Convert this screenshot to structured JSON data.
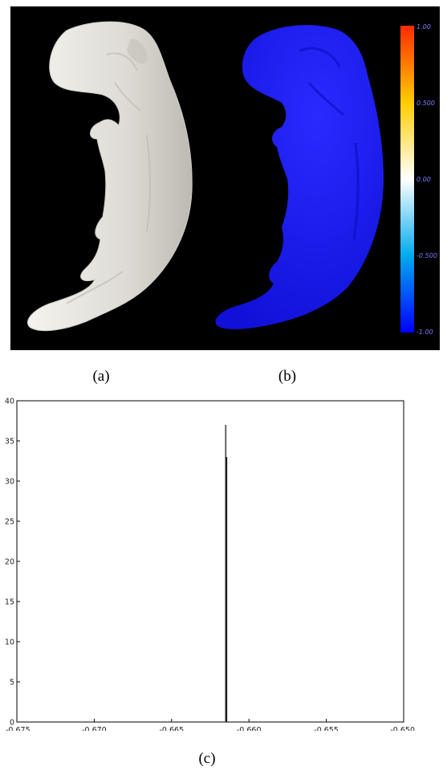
{
  "captions": {
    "a": "(a)",
    "b": "(b)",
    "c": "(c)"
  },
  "colorbar": {
    "ticks": [
      "1.00",
      "0.500",
      "0.00",
      "-0.500",
      "-1.00"
    ],
    "values": [
      1.0,
      0.5,
      0.0,
      -0.5,
      -1.0
    ],
    "range": [
      -1.0,
      1.0
    ],
    "colors": [
      "#ff2a00",
      "#ffcc00",
      "#ffffff",
      "#00aaee",
      "#0000ff"
    ]
  },
  "render_colors": {
    "background": "#000000",
    "mesh": "#e6e4de",
    "mapped": "#1414f0"
  },
  "chart_data": {
    "type": "bar",
    "title": "",
    "xlabel": "",
    "ylabel": "",
    "xlim": [
      -0.675,
      -0.65
    ],
    "ylim": [
      0,
      40
    ],
    "x_ticks": [
      -0.675,
      -0.67,
      -0.665,
      -0.66,
      -0.655,
      -0.65
    ],
    "x_tick_labels": [
      "-0.675",
      "-0.670",
      "-0.665",
      "-0.660",
      "-0.655",
      "-0.650"
    ],
    "y_ticks": [
      0,
      5,
      10,
      15,
      20,
      25,
      30,
      35,
      40
    ],
    "y_tick_labels": [
      "0",
      "5",
      "10",
      "15",
      "20",
      "25",
      "30",
      "35",
      "40"
    ],
    "bars": [
      {
        "x": -0.6615,
        "value": 37
      },
      {
        "x": -0.66145,
        "value": 33
      }
    ],
    "grid": false
  }
}
